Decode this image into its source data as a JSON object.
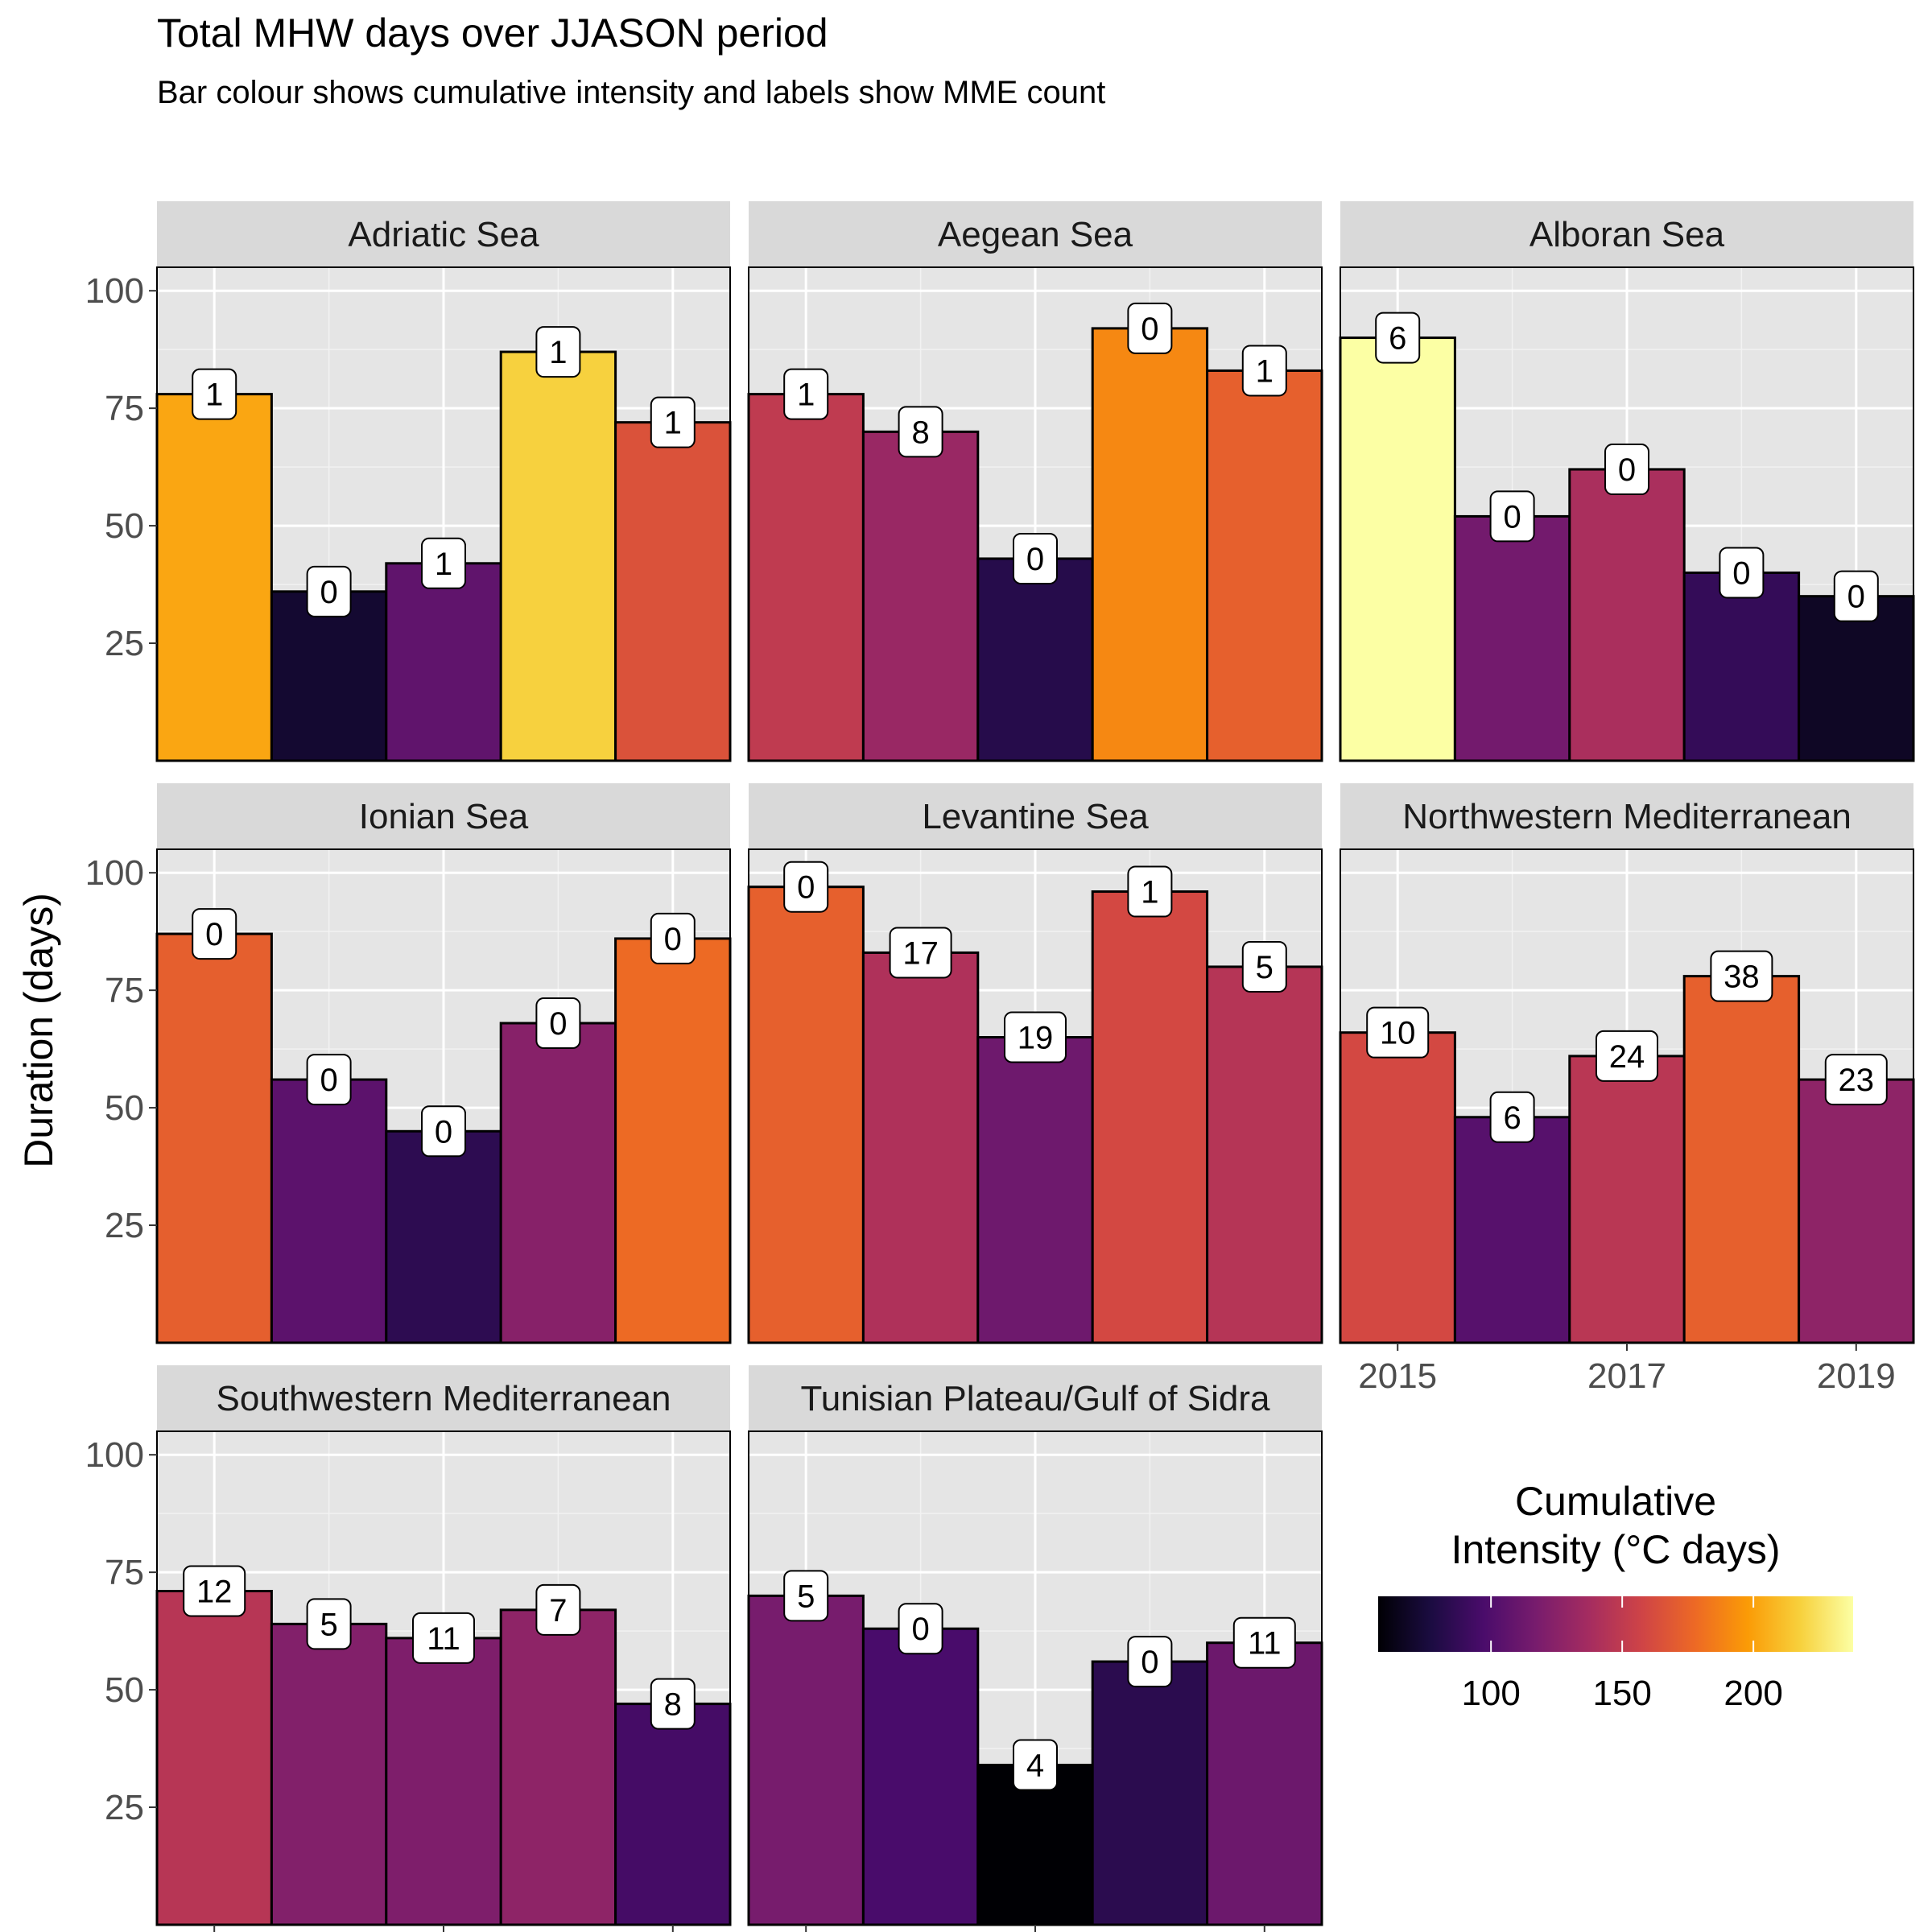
{
  "chart_data": {
    "type": "bar",
    "title": "Total MHW days over JJASON period",
    "subtitle": "Bar colour shows cumulative intensity and labels show MME count",
    "ylabel": "Duration (days)",
    "xlabel": "",
    "x": [
      2015,
      2016,
      2017,
      2018,
      2019
    ],
    "x_tick_labels": [
      "2015",
      "2017",
      "2019"
    ],
    "y_ticks": [
      25,
      50,
      75,
      100
    ],
    "ylim": [
      0,
      105
    ],
    "grid": true,
    "legend": {
      "title_line1": "Cumulative",
      "title_line2": "Intensity (°C days)",
      "type": "colorbar",
      "palette": "inferno",
      "range": [
        57,
        238
      ],
      "ticks": [
        100,
        150,
        200
      ],
      "placement": "bottom-right"
    },
    "panels": [
      {
        "name": "Adriatic Sea",
        "duration": [
          78,
          36,
          42,
          87,
          72
        ],
        "intensity": [
          202,
          72,
          107,
          218,
          165
        ],
        "mme_count": [
          "1",
          "0",
          "1",
          "1",
          "1"
        ]
      },
      {
        "name": "Aegean Sea",
        "duration": [
          78,
          70,
          43,
          92,
          83
        ],
        "intensity": [
          150,
          132,
          82,
          190,
          173
        ],
        "mme_count": [
          "1",
          "8",
          "0",
          "0",
          "1"
        ]
      },
      {
        "name": "Alboran Sea",
        "duration": [
          90,
          52,
          62,
          40,
          35
        ],
        "intensity": [
          238,
          115,
          140,
          88,
          68
        ],
        "mme_count": [
          "6",
          "0",
          "0",
          "0",
          "0"
        ]
      },
      {
        "name": "Ionian Sea",
        "duration": [
          87,
          56,
          45,
          68,
          86
        ],
        "intensity": [
          172,
          105,
          85,
          124,
          178
        ],
        "mme_count": [
          "0",
          "0",
          "0",
          "0",
          "0"
        ]
      },
      {
        "name": "Levantine Sea",
        "duration": [
          97,
          83,
          65,
          96,
          80
        ],
        "intensity": [
          173,
          142,
          113,
          160,
          145
        ],
        "mme_count": [
          "0",
          "17",
          "19",
          "1",
          "5"
        ]
      },
      {
        "name": "Northwestern Mediterranean",
        "duration": [
          66,
          48,
          61,
          78,
          56
        ],
        "intensity": [
          160,
          103,
          147,
          173,
          127
        ],
        "mme_count": [
          "10",
          "6",
          "24",
          "38",
          "23"
        ]
      },
      {
        "name": "Southwestern Mediterranean",
        "duration": [
          71,
          64,
          61,
          67,
          47
        ],
        "intensity": [
          146,
          122,
          120,
          127,
          95
        ],
        "mme_count": [
          "12",
          "5",
          "11",
          "7",
          "8"
        ]
      },
      {
        "name": "Tunisian Plateau/Gulf of Sidra",
        "duration": [
          70,
          63,
          34,
          56,
          60
        ],
        "intensity": [
          117,
          97,
          57,
          84,
          112
        ],
        "mme_count": [
          "5",
          "0",
          "4",
          "0",
          "11"
        ]
      }
    ]
  }
}
